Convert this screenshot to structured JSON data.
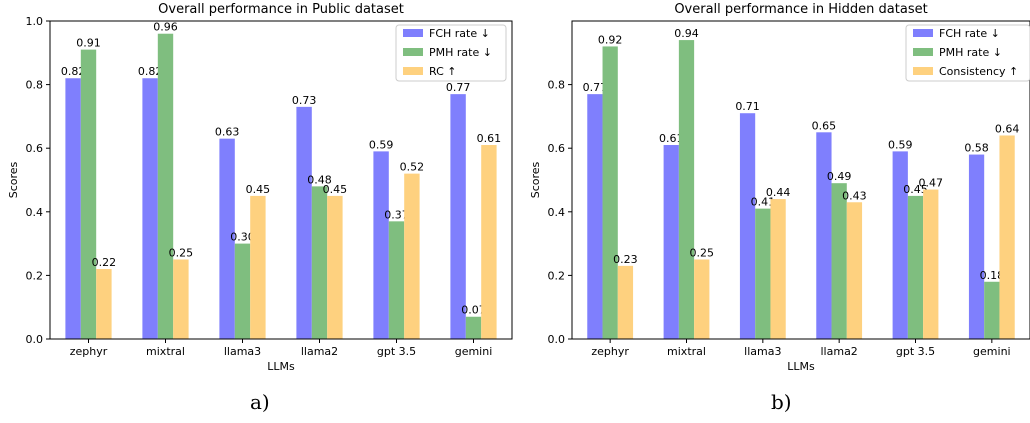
{
  "chart_data": [
    {
      "type": "bar",
      "panel_label": "a)",
      "title": "Overall performance in Public dataset",
      "xlabel": "LLMs",
      "ylabel": "Scores",
      "ylim": [
        0,
        1.0
      ],
      "yticks": [
        "0.0",
        "0.2",
        "0.4",
        "0.6",
        "0.8",
        "1.0"
      ],
      "ytick_values": [
        0,
        0.2,
        0.4,
        0.6,
        0.8,
        1.0
      ],
      "grid": false,
      "legend_position": "top-right",
      "categories": [
        "zephyr",
        "mixtral",
        "llama3",
        "llama2",
        "gpt 3.5",
        "gemini"
      ],
      "series": [
        {
          "name": "FCH rate ↓",
          "color": "#7f7ffd",
          "values": [
            0.82,
            0.82,
            0.63,
            0.73,
            0.59,
            0.77
          ],
          "labels": [
            "0.82",
            "0.82",
            "0.63",
            "0.73",
            "0.59",
            "0.77"
          ]
        },
        {
          "name": "PMH rate ↓",
          "color": "#7fbe7f",
          "values": [
            0.91,
            0.96,
            0.3,
            0.48,
            0.37,
            0.07
          ],
          "labels": [
            "0.91",
            "0.96",
            "0.30",
            "0.48",
            "0.37",
            "0.07"
          ]
        },
        {
          "name": "RC ↑",
          "color": "#fed17f",
          "values": [
            0.22,
            0.25,
            0.45,
            0.45,
            0.52,
            0.61
          ],
          "labels": [
            "0.22",
            "0.25",
            "0.45",
            "0.45",
            "0.52",
            "0.61"
          ]
        }
      ]
    },
    {
      "type": "bar",
      "panel_label": "b)",
      "title": "Overall performance in Hidden dataset",
      "xlabel": "LLMs",
      "ylabel": "Scores",
      "ylim": [
        0,
        1.0
      ],
      "yticks": [
        "0.0",
        "0.2",
        "0.4",
        "0.6",
        "0.8"
      ],
      "ytick_values": [
        0,
        0.2,
        0.4,
        0.6,
        0.8
      ],
      "grid": false,
      "legend_position": "top-right",
      "categories": [
        "zephyr",
        "mixtral",
        "llama3",
        "llama2",
        "gpt 3.5",
        "gemini"
      ],
      "series": [
        {
          "name": "FCH rate ↓",
          "color": "#7f7ffd",
          "values": [
            0.77,
            0.61,
            0.71,
            0.65,
            0.59,
            0.58
          ],
          "labels": [
            "0.77",
            "0.61",
            "0.71",
            "0.65",
            "0.59",
            "0.58"
          ]
        },
        {
          "name": "PMH rate ↓",
          "color": "#7fbe7f",
          "values": [
            0.92,
            0.94,
            0.41,
            0.49,
            0.45,
            0.18
          ],
          "labels": [
            "0.92",
            "0.94",
            "0.41",
            "0.49",
            "0.45",
            "0.18"
          ]
        },
        {
          "name": "Consistency ↑",
          "color": "#fed17f",
          "values": [
            0.23,
            0.25,
            0.44,
            0.43,
            0.47,
            0.64
          ],
          "labels": [
            "0.23",
            "0.25",
            "0.44",
            "0.43",
            "0.47",
            "0.64"
          ]
        }
      ]
    }
  ]
}
